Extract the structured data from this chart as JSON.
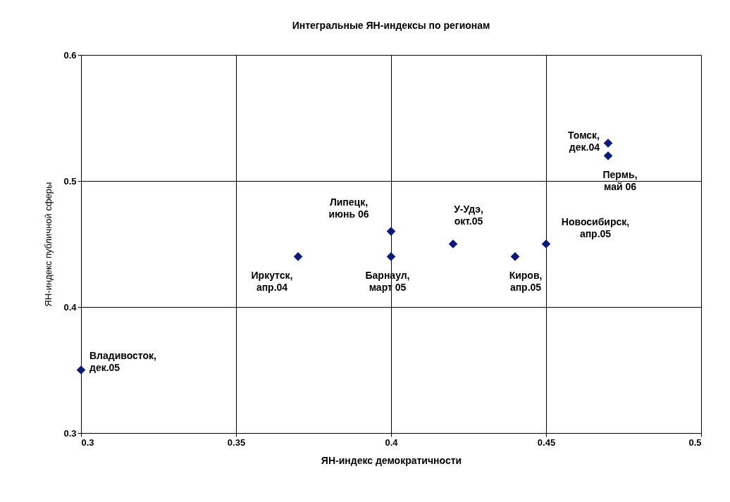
{
  "chart_data": {
    "type": "scatter",
    "title": "Интегральные ЯН-индексы по регионам",
    "xlabel": "ЯН-индекс демократичности",
    "ylabel": "ЯН-индекс публичной сферы",
    "x": [
      0.47,
      0.47,
      0.4,
      0.4,
      0.42,
      0.45,
      0.44,
      0.37,
      0.3
    ],
    "series": [
      {
        "color": "#0b1a80",
        "values": [
          0.53,
          0.52,
          0.46,
          0.44,
          0.45,
          0.45,
          0.44,
          0.44,
          0.35
        ],
        "value_labels": [
          "Томск, дек.04",
          "Пермь, май 06",
          "Липецк, июнь 06",
          "Барнаул, март 05",
          "У-Удэ, окт.05",
          "Новосибирск, апр.05",
          "Киров, апр.05",
          "Иркутск, апр.04",
          "Владивосток, дек.05"
        ]
      }
    ],
    "xlim": [
      0.3,
      0.5
    ],
    "xticks": [
      0.3,
      0.35,
      0.4,
      0.45,
      0.5
    ],
    "ylim": [
      0.3,
      0.6
    ],
    "yticks": [
      0.3,
      0.4,
      0.5,
      0.6
    ],
    "grid": true,
    "marker": "diamond"
  }
}
